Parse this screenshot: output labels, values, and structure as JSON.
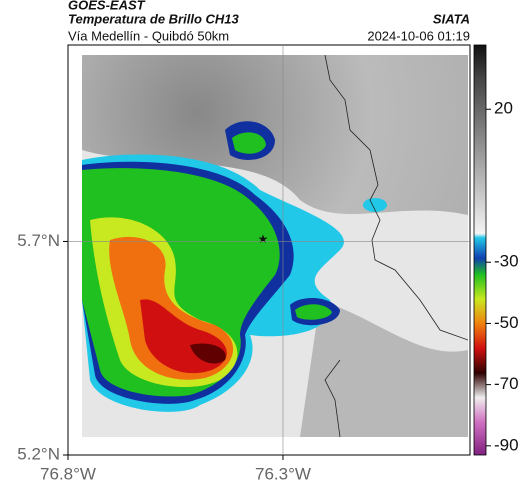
{
  "header": {
    "satellite": "GOES-EAST",
    "title": "Temperatura de Brillo CH13",
    "subtitle": "Vía Medellín - Quibdó 50km",
    "source": "SIATA",
    "datetime": "2024-10-06 01:19"
  },
  "map": {
    "lat_range": [
      5.2,
      6.16
    ],
    "lon_range": [
      -76.8,
      -75.865
    ],
    "lat_ticks": [
      {
        "value": 5.7,
        "label": "5.7°N"
      },
      {
        "value": 5.2,
        "label": "5.2°N"
      }
    ],
    "lon_ticks": [
      {
        "value": -76.8,
        "label": "76.8°W"
      },
      {
        "value": -76.3,
        "label": "76.3°W"
      }
    ]
  },
  "colorbar": {
    "limits": [
      -93,
      41
    ],
    "ticks": [
      20,
      -30,
      -50,
      -70,
      -90
    ]
  }
}
